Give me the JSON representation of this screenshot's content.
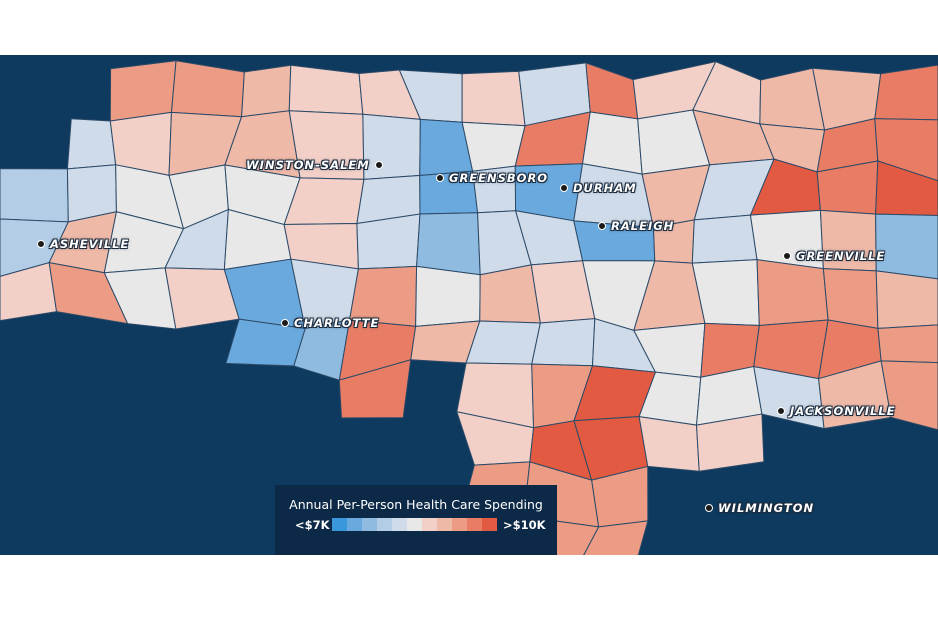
{
  "legend": {
    "title": "Annual Per-Person Health Care Spending",
    "low_label": "<$7K",
    "high_label": ">$10K",
    "scale_colors": [
      "#3b97dc",
      "#6aa9dd",
      "#8fbbe0",
      "#b3cde6",
      "#cfdbe9",
      "#e8e8e8",
      "#f2d0c8",
      "#efb9a8",
      "#ec9c85",
      "#e87c64",
      "#e25a42"
    ]
  },
  "background_color": "#0d3a5e",
  "cities": [
    {
      "name": "WINSTON-SALEM",
      "dot_side": "right"
    },
    {
      "name": "GREENSBORO",
      "dot_side": "left"
    },
    {
      "name": "DURHAM",
      "dot_side": "left"
    },
    {
      "name": "RALEIGH",
      "dot_side": "left"
    },
    {
      "name": "ASHEVILLE",
      "dot_side": "left"
    },
    {
      "name": "CHARLOTTE",
      "dot_side": "left"
    },
    {
      "name": "GREENVILLE",
      "dot_side": "left"
    },
    {
      "name": "JACKSONVILLE",
      "dot_side": "left"
    },
    {
      "name": "WILMINGTON",
      "dot_side": "left"
    }
  ],
  "county_spending_levels": [
    "..88766464966779",
    ".467764159557799",
    "3455564141474a9a",
    "3754564244174572",
    "6856148576575887",
    "....129744459998",
    "......9.68a55478",
    "........6aa66...",
    "........888.....",
    "........888....."
  ]
}
